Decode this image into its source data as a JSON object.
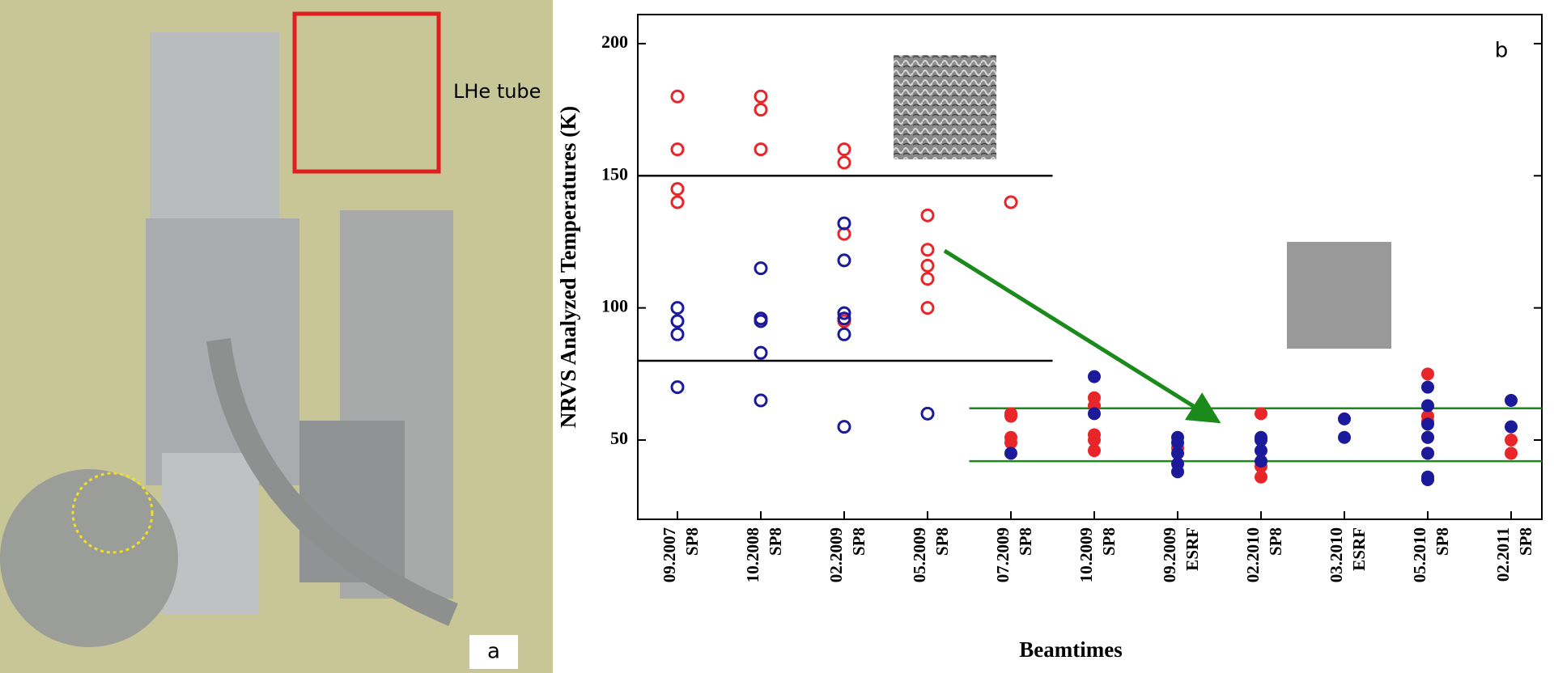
{
  "photo": {
    "callout": "LHe tube",
    "panel_label": "a"
  },
  "chart_data": {
    "type": "scatter",
    "panel_label": "b",
    "y_label": "NRVS Analyzed Temperatures (K)",
    "x_label": "Beamtimes",
    "categories": [
      "09.2007",
      "10.2008",
      "02.2009",
      "05.2009",
      "07.2009",
      "10.2009",
      "09.2009",
      "02.2010",
      "03.2010",
      "05.2010",
      "02.2011"
    ],
    "facilities": [
      "SP8",
      "SP8",
      "SP8",
      "SP8",
      "SP8",
      "SP8",
      "ESRF",
      "SP8",
      "ESRF",
      "SP8",
      "SP8"
    ],
    "ylim": [
      20,
      211
    ],
    "yticks": [
      50,
      100,
      150,
      200
    ],
    "reference_lines": [
      {
        "value": 150,
        "color": "#000000"
      },
      {
        "value": 80,
        "color": "#000000"
      },
      {
        "value": 62,
        "color": "#1a8a1a"
      },
      {
        "value": 42,
        "color": "#1a8a1a"
      }
    ],
    "series": [
      {
        "color": "#e8262a",
        "filled": false,
        "values": [
          [
            180,
            160,
            145,
            140
          ],
          [
            180,
            175,
            160
          ],
          [
            160,
            155,
            128,
            95
          ],
          [
            135,
            122,
            116,
            111,
            100
          ],
          [
            140
          ],
          [],
          [],
          [],
          [],
          [],
          []
        ]
      },
      {
        "color": "#1a1a9a",
        "filled": false,
        "values": [
          [
            100,
            95,
            90,
            70
          ],
          [
            115,
            96,
            95,
            83,
            65
          ],
          [
            132,
            118,
            98,
            96,
            90,
            55
          ],
          [
            60
          ],
          [],
          [],
          [],
          [],
          [],
          [],
          []
        ]
      },
      {
        "color": "#e8262a",
        "filled": true,
        "values": [
          [],
          [],
          [],
          [],
          [
            60,
            59,
            51,
            49
          ],
          [
            66,
            63,
            52,
            50,
            46
          ],
          [
            47
          ],
          [
            60,
            40,
            36
          ],
          [],
          [
            75,
            59,
            57,
            51,
            45
          ],
          [
            50,
            45
          ]
        ]
      },
      {
        "color": "#1a1a9a",
        "filled": true,
        "values": [
          [],
          [],
          [],
          [],
          [
            45
          ],
          [
            74,
            60
          ],
          [
            51,
            49,
            45,
            41,
            38
          ],
          [
            51,
            50,
            46,
            42
          ],
          [
            58,
            51
          ],
          [
            70,
            63,
            56,
            51,
            45,
            36,
            35
          ],
          [
            65,
            55
          ]
        ]
      }
    ]
  }
}
